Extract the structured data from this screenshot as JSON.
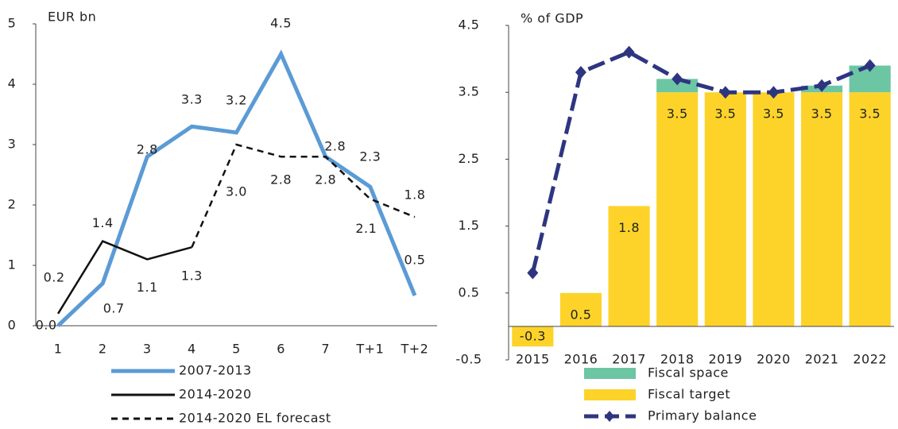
{
  "chart_data": [
    {
      "type": "line",
      "ylabel": "EUR bn",
      "categories": [
        "1",
        "2",
        "3",
        "4",
        "5",
        "6",
        "7",
        "T+1",
        "T+2"
      ],
      "ylim": [
        0,
        5
      ],
      "yticks": [
        0,
        1,
        2,
        3,
        4,
        5
      ],
      "legend": "bottom",
      "series": [
        {
          "name": "2007-2013",
          "color": "#5b9bd5",
          "values": [
            0.0,
            0.7,
            2.8,
            3.3,
            3.2,
            4.5,
            2.8,
            2.3,
            0.5
          ],
          "value_labels": [
            "0.0",
            "0.7",
            "2.8",
            "3.3",
            "3.2",
            "4.5",
            "2.8",
            "2.3",
            "0.5"
          ]
        },
        {
          "name": "2014-2020",
          "color": "#111111",
          "values": [
            0.2,
            1.4,
            1.1,
            1.3,
            null,
            null,
            null,
            null,
            null
          ],
          "value_labels": [
            "0.2",
            "1.4",
            "1.1",
            "1.3",
            null,
            null,
            null,
            null,
            null
          ]
        },
        {
          "name": "2014-2020 EL forecast",
          "color": "#111111",
          "dash": true,
          "values": [
            null,
            null,
            null,
            1.3,
            3.0,
            2.8,
            2.8,
            2.1,
            1.8
          ],
          "value_labels": [
            null,
            null,
            null,
            null,
            "3.0",
            "2.8",
            "2.8",
            "2.1",
            "1.8"
          ]
        }
      ]
    },
    {
      "type": "bar",
      "ylabel": "% of GDP",
      "stacked": true,
      "legend": "bottom",
      "categories": [
        "2015",
        "2016",
        "2017",
        "2018",
        "2019",
        "2020",
        "2021",
        "2022"
      ],
      "ylim": [
        -0.5,
        4.5
      ],
      "yticks": [
        -0.5,
        0.5,
        1.5,
        2.5,
        3.5,
        4.5
      ],
      "series": [
        {
          "name": "Fiscal space",
          "type": "bar",
          "color": "#6cc6a4",
          "values": [
            0,
            0,
            0,
            0.2,
            0,
            0,
            0.1,
            0.4
          ]
        },
        {
          "name": "Fiscal target",
          "type": "bar",
          "color": "#fdd32a",
          "values": [
            -0.3,
            0.5,
            1.8,
            3.5,
            3.5,
            3.5,
            3.5,
            3.5
          ],
          "labels": true
        },
        {
          "name": "Primary balance",
          "type": "line",
          "marker": "diamond",
          "dash": true,
          "color": "#2e3580",
          "values": [
            0.8,
            3.8,
            4.1,
            3.7,
            3.5,
            3.5,
            3.6,
            3.9
          ]
        }
      ]
    }
  ]
}
